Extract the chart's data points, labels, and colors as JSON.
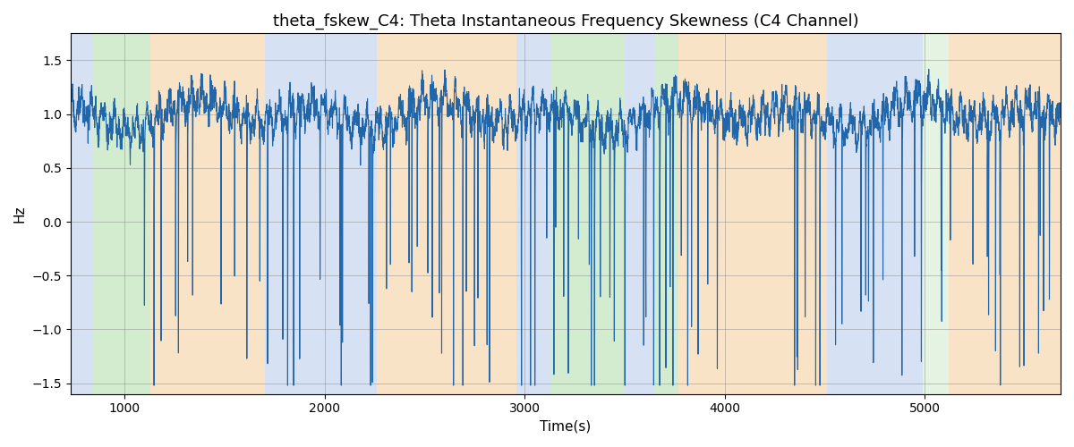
{
  "title": "theta_fskew_C4: Theta Instantaneous Frequency Skewness (C4 Channel)",
  "xlabel": "Time(s)",
  "ylabel": "Hz",
  "xlim": [
    730,
    5680
  ],
  "ylim": [
    -1.6,
    1.75
  ],
  "line_color": "#2266aa",
  "line_width": 0.8,
  "background_regions": [
    {
      "xmin": 730,
      "xmax": 840,
      "color": "#aec6e8",
      "alpha": 0.5
    },
    {
      "xmin": 840,
      "xmax": 1130,
      "color": "#a8d8a0",
      "alpha": 0.5
    },
    {
      "xmin": 1130,
      "xmax": 1700,
      "color": "#f5c990",
      "alpha": 0.5
    },
    {
      "xmin": 1700,
      "xmax": 2260,
      "color": "#aec6e8",
      "alpha": 0.5
    },
    {
      "xmin": 2260,
      "xmax": 2960,
      "color": "#f5c990",
      "alpha": 0.5
    },
    {
      "xmin": 2960,
      "xmax": 3130,
      "color": "#aec6e8",
      "alpha": 0.5
    },
    {
      "xmin": 3130,
      "xmax": 3500,
      "color": "#a8d8a0",
      "alpha": 0.5
    },
    {
      "xmin": 3500,
      "xmax": 3650,
      "color": "#aec6e8",
      "alpha": 0.5
    },
    {
      "xmin": 3650,
      "xmax": 3770,
      "color": "#a8d8a0",
      "alpha": 0.5
    },
    {
      "xmin": 3770,
      "xmax": 4510,
      "color": "#f5c990",
      "alpha": 0.5
    },
    {
      "xmin": 4510,
      "xmax": 4990,
      "color": "#aec6e8",
      "alpha": 0.5
    },
    {
      "xmin": 4990,
      "xmax": 5120,
      "color": "#a8d8a0",
      "alpha": 0.3
    },
    {
      "xmin": 5120,
      "xmax": 5680,
      "color": "#f5c990",
      "alpha": 0.5
    }
  ],
  "seed": 17,
  "n_points": 4950,
  "t_start": 730,
  "t_end": 5680,
  "grid": true,
  "title_fontsize": 13,
  "axis_fontsize": 11,
  "figsize": [
    12,
    5
  ],
  "dpi": 100,
  "calm_end": 1130,
  "volatile_start": 1130
}
